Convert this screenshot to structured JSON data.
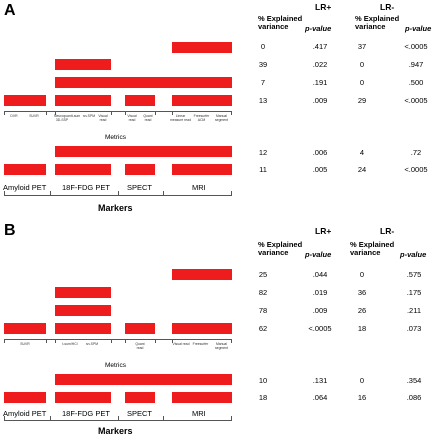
{
  "panels": [
    {
      "letter": "A",
      "lr_plus": "LR+",
      "lr_minus": "LR-",
      "col_explained": "% Explained variance",
      "col_p": "p-value",
      "metrics_label": "Metrics",
      "markers_label": "Markers",
      "metric_labels": {
        "amyloid": [
          "DVR",
          "SUVR"
        ],
        "fdg": [
          "Neuroquant 3D-SSP",
          "t-sum",
          "sn-SPM",
          "Visual read"
        ],
        "spect": [
          "Visual read",
          "Quant read"
        ],
        "mri": [
          "Linear measure read",
          "Freesurfer ACM",
          "Manual segment"
        ]
      },
      "marker_labels": [
        "Amyloid PET",
        "18F-FDG PET",
        "SPECT",
        "MRI"
      ],
      "rows": [
        {
          "lrp_var": "0",
          "lrp_p": ".417",
          "lrm_var": "37",
          "lrm_p": "<.0005"
        },
        {
          "lrp_var": "39",
          "lrp_p": ".022",
          "lrm_var": "0",
          "lrm_p": ".947"
        },
        {
          "lrp_var": "7",
          "lrp_p": ".191",
          "lrm_var": "0",
          "lrm_p": ".500"
        },
        {
          "lrp_var": "13",
          "lrp_p": ".009",
          "lrm_var": "29",
          "lrm_p": "<.0005"
        },
        {
          "lrp_var": "12",
          "lrp_p": ".006",
          "lrm_var": "4",
          "lrm_p": ".72"
        },
        {
          "lrp_var": "11",
          "lrp_p": ".005",
          "lrm_var": "24",
          "lrm_p": "<.0005"
        }
      ]
    },
    {
      "letter": "B",
      "lr_plus": "LR+",
      "lr_minus": "LR-",
      "col_explained": "% Explained variance",
      "col_p": "p-value",
      "metrics_label": "Metrics",
      "markers_label": "Markers",
      "metric_labels": {
        "amyloid": [
          "SUVR"
        ],
        "fdg": [
          "t-sum/HCI",
          "sn-SPM"
        ],
        "spect": [
          "Quant read"
        ],
        "mri": [
          "Visual read",
          "Freesurfer",
          "Manual segment"
        ]
      },
      "marker_labels": [
        "Amyloid PET",
        "18F-FDG PET",
        "SPECT",
        "MRI"
      ],
      "rows": [
        {
          "lrp_var": "25",
          "lrp_p": ".044",
          "lrm_var": "0",
          "lrm_p": ".575"
        },
        {
          "lrp_var": "82",
          "lrp_p": ".019",
          "lrm_var": "36",
          "lrm_p": ".175"
        },
        {
          "lrp_var": "78",
          "lrp_p": ".009",
          "lrm_var": "26",
          "lrm_p": ".211"
        },
        {
          "lrp_var": "62",
          "lrp_p": "<.0005",
          "lrm_var": "18",
          "lrm_p": ".073"
        },
        {
          "lrp_var": "10",
          "lrp_p": ".131",
          "lrm_var": "0",
          "lrm_p": ".354"
        },
        {
          "lrp_var": "18",
          "lrp_p": ".064",
          "lrm_var": "16",
          "lrm_p": ".086"
        }
      ]
    }
  ],
  "chart_data": [
    {
      "type": "table",
      "title": "A",
      "columns": [
        "% Explained variance (LR+)",
        "p-value (LR+)",
        "% Explained variance (LR-)",
        "p-value (LR-)"
      ],
      "rows": [
        [
          "0",
          ".417",
          "37",
          "<.0005"
        ],
        [
          "39",
          ".022",
          "0",
          ".947"
        ],
        [
          "7",
          ".191",
          "0",
          ".500"
        ],
        [
          "13",
          ".009",
          "29",
          "<.0005"
        ],
        [
          "12",
          ".006",
          "4",
          ".72"
        ],
        [
          "11",
          ".005",
          "24",
          "<.0005"
        ]
      ],
      "bar_color": "#ee1c1c"
    },
    {
      "type": "table",
      "title": "B",
      "columns": [
        "% Explained variance (LR+)",
        "p-value (LR+)",
        "% Explained variance (LR-)",
        "p-value (LR-)"
      ],
      "rows": [
        [
          "25",
          ".044",
          "0",
          ".575"
        ],
        [
          "82",
          ".019",
          "36",
          ".175"
        ],
        [
          "78",
          ".009",
          "26",
          ".211"
        ],
        [
          "62",
          "<.0005",
          "18",
          ".073"
        ],
        [
          "10",
          ".131",
          "0",
          ".354"
        ],
        [
          "18",
          ".064",
          "16",
          ".086"
        ]
      ],
      "bar_color": "#ee1c1c"
    }
  ]
}
